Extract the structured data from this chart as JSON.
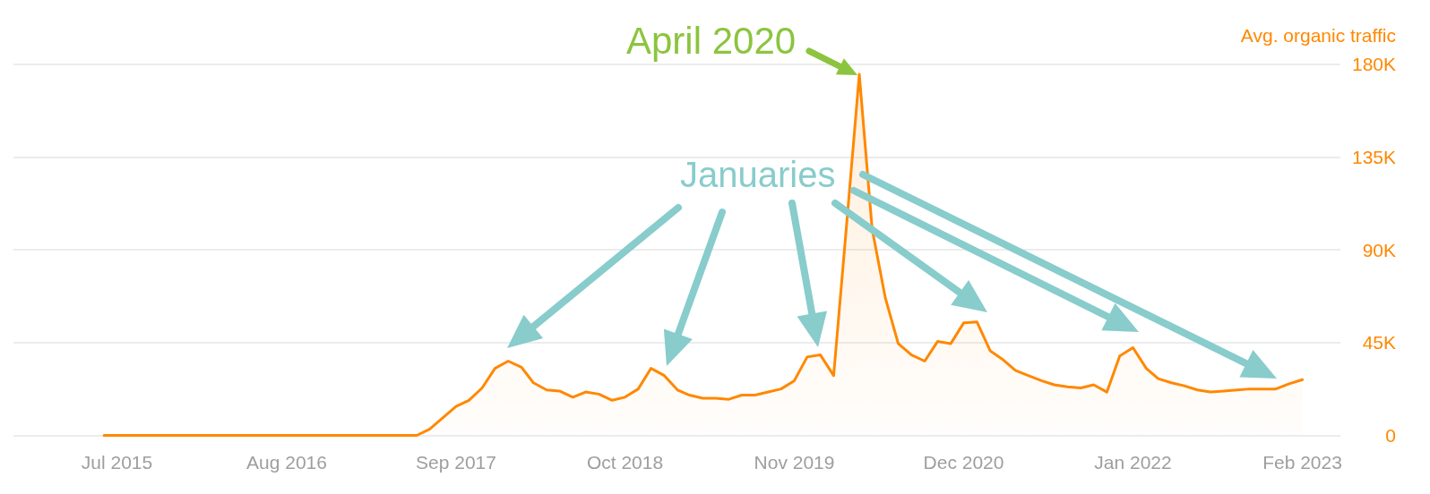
{
  "chart_data": {
    "type": "area",
    "ylabel": "Avg. organic traffic",
    "annotations": [
      {
        "text": "April 2020",
        "x": "2020-04",
        "y": 175000
      },
      "Januaries"
    ],
    "x": [
      "2015-06",
      "2015-07",
      "2015-08",
      "2015-09",
      "2015-10",
      "2015-11",
      "2015-12",
      "2016-01",
      "2016-02",
      "2016-03",
      "2016-04",
      "2016-05",
      "2016-06",
      "2016-07",
      "2016-08",
      "2016-09",
      "2016-10",
      "2016-11",
      "2016-12",
      "2017-01",
      "2017-02",
      "2017-03",
      "2017-04",
      "2017-05",
      "2017-06",
      "2017-07",
      "2017-08",
      "2017-09",
      "2017-10",
      "2017-11",
      "2017-12",
      "2018-01",
      "2018-02",
      "2018-03",
      "2018-04",
      "2018-05",
      "2018-06",
      "2018-07",
      "2018-08",
      "2018-09",
      "2018-10",
      "2018-11",
      "2018-12",
      "2019-01",
      "2019-02",
      "2019-03",
      "2019-04",
      "2019-05",
      "2019-06",
      "2019-07",
      "2019-08",
      "2019-09",
      "2019-10",
      "2019-11",
      "2019-12",
      "2020-01",
      "2020-02",
      "2020-03",
      "2020-04",
      "2020-05",
      "2020-06",
      "2020-07",
      "2020-08",
      "2020-09",
      "2020-10",
      "2020-11",
      "2020-12",
      "2021-01",
      "2021-02",
      "2021-03",
      "2021-04",
      "2021-05",
      "2021-06",
      "2021-07",
      "2021-08",
      "2021-09",
      "2021-10",
      "2021-11",
      "2021-12",
      "2022-01",
      "2022-02",
      "2022-03",
      "2022-04",
      "2022-05",
      "2022-06",
      "2022-07",
      "2022-08",
      "2022-09",
      "2022-10",
      "2022-11",
      "2022-12",
      "2023-01",
      "2023-02"
    ],
    "values": [
      0,
      0,
      0,
      0,
      0,
      0,
      0,
      0,
      0,
      0,
      0,
      0,
      0,
      0,
      0,
      0,
      0,
      0,
      0,
      0,
      0,
      0,
      0,
      0,
      0,
      3000,
      8500,
      14000,
      17000,
      23000,
      32500,
      36000,
      33000,
      25500,
      22000,
      21500,
      18500,
      21000,
      20000,
      17000,
      18500,
      22500,
      32500,
      29000,
      22000,
      19500,
      18000,
      18000,
      17500,
      19500,
      19500,
      21000,
      22500,
      26500,
      38000,
      39000,
      29000,
      99000,
      175000,
      100000,
      66500,
      44500,
      39000,
      36000,
      45500,
      44500,
      54500,
      55000,
      41000,
      37000,
      31500,
      29000,
      26500,
      24500,
      23500,
      23000,
      24500,
      21000,
      38500,
      42500,
      32500,
      27500,
      25500,
      24000,
      22000,
      21000,
      21500,
      22000,
      22500,
      22500,
      22500,
      25000,
      27000
    ],
    "color": "#ff8800",
    "xlim": [
      "2014-11",
      "2023-05"
    ],
    "xticks": [
      {
        "value": "2015-07",
        "label": "Jul 2015"
      },
      {
        "value": "2016-08",
        "label": "Aug 2016"
      },
      {
        "value": "2017-09",
        "label": "Sep 2017"
      },
      {
        "value": "2018-10",
        "label": "Oct 2018"
      },
      {
        "value": "2019-11",
        "label": "Nov 2019"
      },
      {
        "value": "2020-12",
        "label": "Dec 2020"
      },
      {
        "value": "2022-01",
        "label": "Jan 2022"
      },
      {
        "value": "2023-02",
        "label": "Feb 2023"
      }
    ],
    "ylim": [
      0,
      180000
    ],
    "yticks": [
      0,
      {
        "value": 45000,
        "label": "45K"
      },
      {
        "value": 90000,
        "label": "90K"
      },
      {
        "value": 135000,
        "label": "135K"
      },
      {
        "value": 180000,
        "label": "180K"
      }
    ],
    "grid": "y",
    "marker": "none"
  }
}
